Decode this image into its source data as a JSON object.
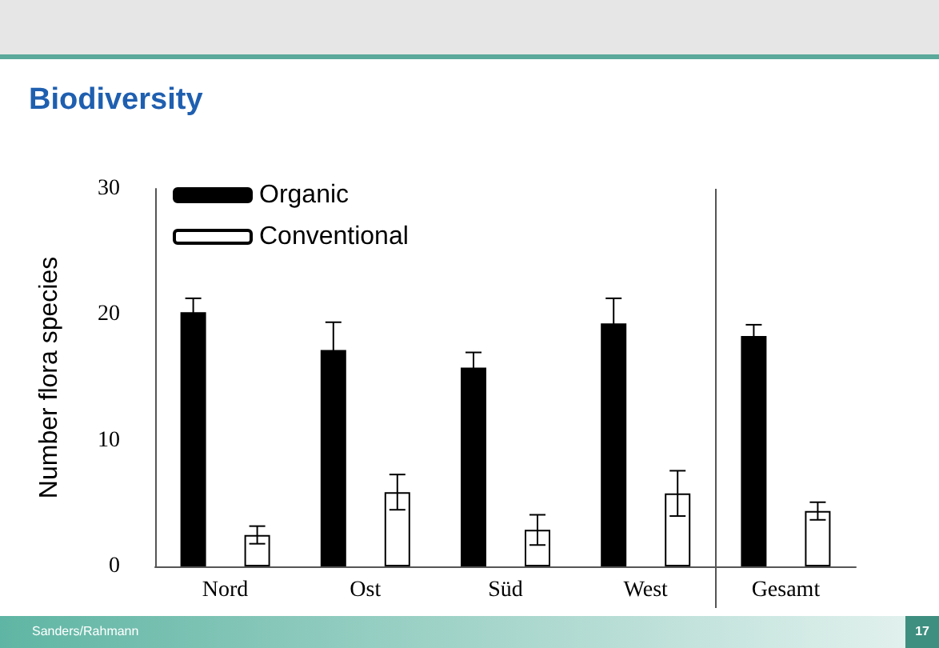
{
  "chart_data": {
    "type": "bar",
    "title": "Biodiversity",
    "ylabel": "Number flora species",
    "categories": [
      "Nord",
      "Ost",
      "Süd",
      "West",
      "Gesamt"
    ],
    "series": [
      {
        "name": "Organic",
        "color": "#000000",
        "values": [
          20.2,
          17.2,
          15.8,
          19.3,
          18.3
        ],
        "errors": [
          1.1,
          2.2,
          1.2,
          2.0,
          0.9
        ]
      },
      {
        "name": "Conventional",
        "color": "#ffffff",
        "values": [
          2.5,
          5.9,
          2.9,
          5.8,
          4.4
        ],
        "errors": [
          0.7,
          1.4,
          1.2,
          1.8,
          0.7
        ]
      }
    ],
    "ylim": [
      0,
      30
    ],
    "yticks": [
      0,
      10,
      20,
      30
    ],
    "grid": false,
    "legend": "top left",
    "annotations": [
      "Sanders/Rahmann",
      "17"
    ]
  }
}
